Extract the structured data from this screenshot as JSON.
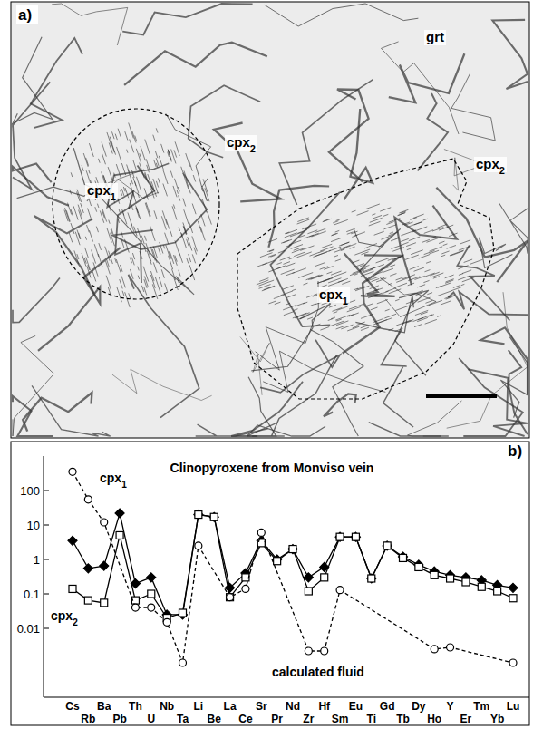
{
  "chart_data": {
    "type": "line",
    "title": "Clinopyroxene from Monviso vein",
    "panel": "b)",
    "log": "y",
    "categories": [
      "Cs",
      "Rb",
      "Ba",
      "Pb",
      "Th",
      "U",
      "Nb",
      "Ta",
      "Li",
      "Be",
      "La",
      "Ce",
      "Sr",
      "Pr",
      "Nd",
      "Zr",
      "Hf",
      "Sm",
      "Eu",
      "Ti",
      "Gd",
      "Tb",
      "Dy",
      "Ho",
      "Y",
      "Er",
      "Tm",
      "Yb",
      "Lu"
    ],
    "ylim": [
      0.0001,
      1000
    ],
    "yticks": [
      100,
      10,
      1,
      0.1,
      0.01
    ],
    "series": [
      {
        "name": "cpx1",
        "color": "#000000",
        "marker": "diamond",
        "line_style": "solid",
        "values": [
          3.5,
          0.55,
          0.65,
          22,
          0.2,
          0.3,
          0.025,
          0.025,
          20,
          17,
          0.15,
          0.4,
          3.5,
          1,
          2,
          0.3,
          0.6,
          4.5,
          4.5,
          0.28,
          2.5,
          1.2,
          0.7,
          0.45,
          0.35,
          0.3,
          0.25,
          0.18,
          0.15
        ]
      },
      {
        "name": "cpx2",
        "color": "#000000",
        "marker": "square",
        "line_style": "solid",
        "values": [
          0.14,
          0.065,
          0.055,
          5,
          0.065,
          0.1,
          0.02,
          0.028,
          20,
          17,
          0.08,
          0.3,
          3,
          0.9,
          2,
          0.12,
          0.3,
          4.5,
          4.5,
          0.28,
          2.5,
          1.1,
          0.6,
          0.35,
          0.28,
          0.22,
          0.16,
          0.12,
          0.075
        ]
      },
      {
        "name": "calculated fluid",
        "color": "#000000",
        "marker": "circle",
        "line_style": "dashed",
        "x": [
          "Cs",
          "Rb",
          "Ba",
          "Th",
          "U",
          "Nb",
          "Ta",
          "Li",
          "La",
          "Ce",
          "Sr",
          "Zr",
          "Hf",
          "Sm",
          "Ho",
          "Y",
          "Lu"
        ],
        "values": [
          350,
          55,
          12,
          0.04,
          0.04,
          0.015,
          0.001,
          2.5,
          0.08,
          0.14,
          6,
          0.0022,
          0.0022,
          0.13,
          0.0025,
          0.0028,
          0.001
        ]
      }
    ]
  },
  "photo": {
    "panel": "a)",
    "labels": [
      "grt",
      "cpx2",
      "cpx1",
      "cpx2",
      "cpx1"
    ]
  }
}
